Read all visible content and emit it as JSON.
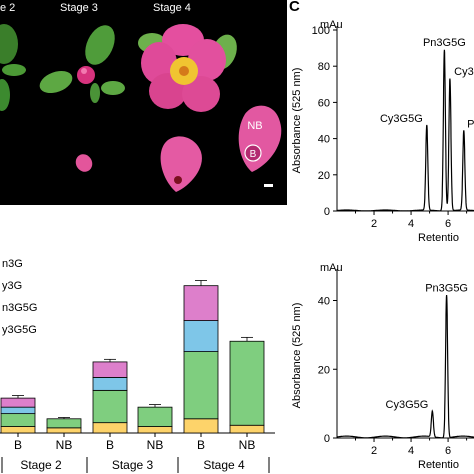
{
  "photo": {
    "stage_labels": [
      "e 2",
      "Stage 3",
      "Stage 4"
    ],
    "petal_regions": [
      "NB",
      "B"
    ]
  },
  "panel_c": {
    "letter": "C"
  },
  "chart_data": [
    {
      "type": "bar",
      "stacked": true,
      "groups": [
        "Stage 2",
        "Stage 3",
        "Stage 4"
      ],
      "categories": [
        "B",
        "NB",
        "B",
        "NB",
        "B",
        "NB"
      ],
      "legend_entries": [
        "n3G",
        "y3G",
        "n3G5G",
        "y3G5G"
      ],
      "series": [
        {
          "name": "y3G5G",
          "color": "#fdd36a",
          "values": [
            5,
            4,
            8,
            5,
            11,
            6
          ]
        },
        {
          "name": "n3G5G",
          "color": "#7fce7f",
          "values": [
            10,
            7,
            25,
            15,
            52,
            65
          ]
        },
        {
          "name": "y3G",
          "color": "#7ec6e8",
          "values": [
            5,
            0,
            10,
            0,
            24,
            0
          ]
        },
        {
          "name": "n3G",
          "color": "#dd7fcb",
          "values": [
            7,
            0,
            12,
            0,
            27,
            0
          ]
        }
      ],
      "errors": [
        2,
        1,
        2,
        2,
        4,
        3
      ],
      "ylim": [
        0,
        130
      ]
    },
    {
      "type": "line",
      "y_unit": "mAu",
      "ylabel": "Absorbance (525 nm)",
      "xlabel": "Retentio",
      "xlim": [
        0,
        7.4
      ],
      "ylim": [
        0,
        100
      ],
      "x_ticks": [
        "2",
        "4",
        "6"
      ],
      "y_ticks": [
        "0",
        "20",
        "40",
        "60",
        "80",
        "100"
      ],
      "peaks": [
        {
          "x": 4.85,
          "y": 47,
          "label": "Cy3G5G"
        },
        {
          "x": 5.8,
          "y": 89,
          "label": "Pn3G5G"
        },
        {
          "x": 6.1,
          "y": 73,
          "label": "Cy3"
        },
        {
          "x": 6.85,
          "y": 44,
          "label": "Pn"
        }
      ]
    },
    {
      "type": "line",
      "y_unit": "mAu",
      "ylabel": "Absorbance (525 nm)",
      "xlabel": "Retentio",
      "xlim": [
        0,
        7.4
      ],
      "ylim": [
        0,
        48
      ],
      "x_ticks": [
        "2",
        "4",
        "6"
      ],
      "y_ticks": [
        "0",
        "20",
        "40"
      ],
      "peaks": [
        {
          "x": 5.15,
          "y": 7.5,
          "label": "Cy3G5G"
        },
        {
          "x": 5.92,
          "y": 41.5,
          "label": "Pn3G5G"
        }
      ]
    }
  ]
}
